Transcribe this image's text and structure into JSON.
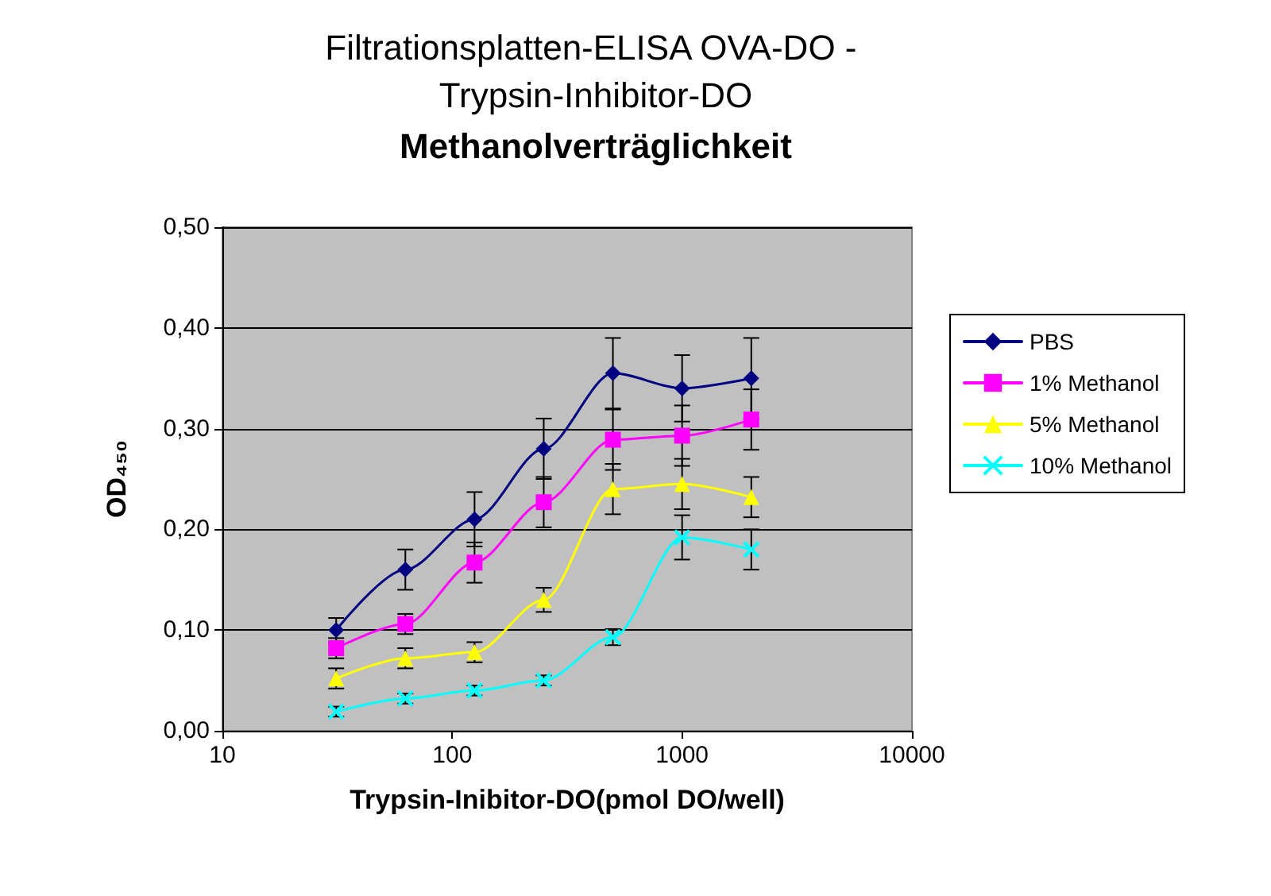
{
  "chart_data": {
    "type": "line",
    "title": "Filtrationsplatten-ELISA OVA-DO - Trypsin-Inhibitor-DO",
    "subtitle": "Methanolverträglichkeit",
    "xlabel": "Trypsin-Inibitor-DO(pmol DO/well)",
    "ylabel": "OD₄₅₀",
    "x": [
      31.25,
      62.5,
      125,
      250,
      500,
      1000,
      2000
    ],
    "series": [
      {
        "name": "PBS",
        "color": "#000080",
        "marker": "diamond",
        "values": [
          0.1,
          0.16,
          0.21,
          0.28,
          0.355,
          0.34,
          0.35
        ],
        "errors": [
          0.012,
          0.02,
          0.027,
          0.03,
          0.035,
          0.033,
          0.04
        ]
      },
      {
        "name": "1% Methanol",
        "color": "#ff00ff",
        "marker": "square",
        "values": [
          0.082,
          0.106,
          0.167,
          0.227,
          0.289,
          0.293,
          0.309
        ],
        "errors": [
          0.01,
          0.01,
          0.02,
          0.025,
          0.03,
          0.03,
          0.03
        ]
      },
      {
        "name": "5% Methanol",
        "color": "#ffff00",
        "marker": "triangle",
        "values": [
          0.052,
          0.072,
          0.078,
          0.13,
          0.24,
          0.245,
          0.232
        ],
        "errors": [
          0.01,
          0.01,
          0.01,
          0.012,
          0.025,
          0.025,
          0.02
        ]
      },
      {
        "name": "10% Methanol",
        "color": "#00ffff",
        "marker": "cross",
        "values": [
          0.019,
          0.032,
          0.04,
          0.05,
          0.093,
          0.192,
          0.18
        ],
        "errors": [
          0.005,
          0.005,
          0.005,
          0.005,
          0.008,
          0.022,
          0.02
        ]
      }
    ],
    "log": "x",
    "xlim": [
      10,
      10000
    ],
    "xticks": [
      10,
      100,
      1000,
      10000
    ],
    "ylim": [
      0,
      0.5
    ],
    "yticks": [
      {
        "value": 0,
        "label": "0,00"
      },
      {
        "value": 0.1,
        "label": "0,10"
      },
      {
        "value": 0.2,
        "label": "0,20"
      },
      {
        "value": 0.3,
        "label": "0,30"
      },
      {
        "value": 0.4,
        "label": "0,40"
      },
      {
        "value": 0.5,
        "label": "0,50"
      }
    ],
    "grid": "y",
    "legend": "right",
    "line_style": "solid"
  }
}
